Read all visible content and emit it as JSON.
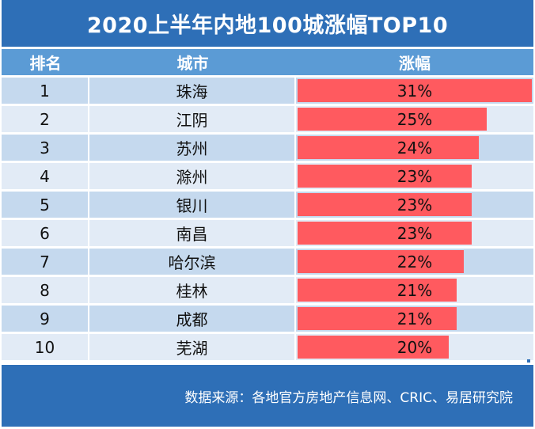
{
  "title": "2020上半年内地100城涨幅TOP10",
  "headers": {
    "rank": "排名",
    "city": "城市",
    "growth": "涨幅"
  },
  "colors": {
    "title_bg": "#2e6fb7",
    "header_bg": "#5b9bd5",
    "row_odd": "#c5d9ee",
    "row_even": "#e2ebf6",
    "bar": "#ff5a5f"
  },
  "footer": {
    "source": "数据来源：各地官方房地产信息网、CRIC、易居研究院"
  },
  "chart_data": {
    "type": "table",
    "title": "2020上半年内地100城涨幅TOP10",
    "columns": [
      "排名",
      "城市",
      "涨幅"
    ],
    "ranks": [
      "1",
      "2",
      "3",
      "4",
      "5",
      "6",
      "7",
      "8",
      "9",
      "10"
    ],
    "categories": [
      "珠海",
      "江阴",
      "苏州",
      "滁州",
      "银川",
      "南昌",
      "哈尔滨",
      "桂林",
      "成都",
      "芜湖"
    ],
    "values": [
      31,
      25,
      24,
      23,
      23,
      23,
      22,
      21,
      21,
      20
    ],
    "value_labels": [
      "31%",
      "25%",
      "24%",
      "23%",
      "23%",
      "23%",
      "22%",
      "21%",
      "21%",
      "20%"
    ],
    "max_value": 31
  }
}
